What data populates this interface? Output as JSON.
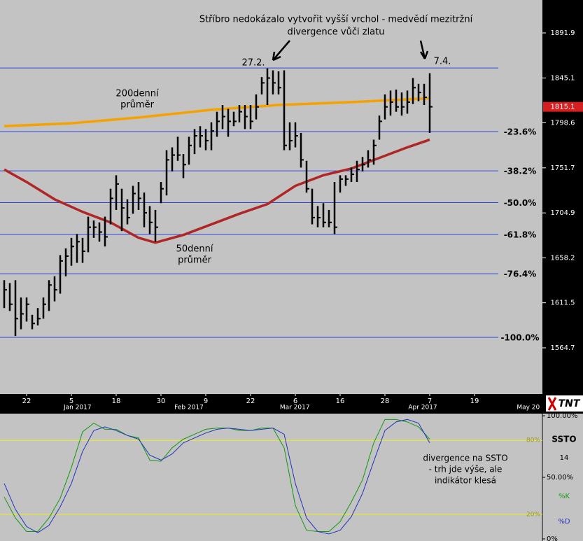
{
  "logo": "TNT",
  "chart_data": [
    {
      "type": "hlc",
      "annotation": [
        "Stříbro nedokázalo vytvořit vyšší vrchol - medvědí mezitržní",
        "divergence vůči zlatu"
      ],
      "peak_labels": [
        "27.2.",
        "7.4."
      ],
      "xlim": [
        -0.75,
        96.125
      ],
      "xticks": [
        {
          "value": 4,
          "label": "22"
        },
        {
          "value": 12,
          "label": "5"
        },
        {
          "value": 20,
          "label": "18"
        },
        {
          "value": 28,
          "label": "30"
        },
        {
          "value": 36,
          "label": "9"
        },
        {
          "value": 44,
          "label": "22"
        },
        {
          "value": 52,
          "label": "6"
        },
        {
          "value": 60,
          "label": "16"
        },
        {
          "value": 68,
          "label": "28"
        },
        {
          "value": 76,
          "label": "7"
        },
        {
          "value": 84,
          "label": "19"
        }
      ],
      "month_ticks": [
        {
          "value": 13.1,
          "label": "Jan 2017"
        },
        {
          "value": 33,
          "label": "Feb 2017"
        },
        {
          "value": 51.9,
          "label": "Mar 2017"
        },
        {
          "value": 74.75,
          "label": "Apr 2017"
        },
        {
          "value": 93.6,
          "label": "May 20"
        }
      ],
      "ylim": [
        1516.7,
        1926.1
      ],
      "yticks": [
        1891.9,
        1845.1,
        1798.6,
        1751.7,
        1704.9,
        1658.2,
        1611.5,
        1564.7
      ],
      "last_price": 1815.1,
      "bar_color": "#000000",
      "high": [
        1635,
        1632,
        1635,
        1617,
        1617,
        1599,
        1606,
        1617,
        1635,
        1639,
        1661,
        1668,
        1679,
        1683,
        1679,
        1701,
        1697,
        1695,
        1701,
        1730,
        1744,
        1730,
        1719,
        1733,
        1737,
        1726,
        1712,
        1708,
        1737,
        1770,
        1773,
        1784,
        1766,
        1784,
        1792,
        1795,
        1792,
        1799,
        1810,
        1817,
        1813,
        1810,
        1817,
        1817,
        1817,
        1828,
        1846,
        1855,
        1853,
        1852,
        1853,
        1799,
        1799,
        1788,
        1759,
        1730,
        1712,
        1715,
        1708,
        1737,
        1744,
        1744,
        1752,
        1759,
        1763,
        1770,
        1781,
        1806,
        1828,
        1832,
        1833,
        1830,
        1832,
        1845,
        1839,
        1839,
        1850
      ],
      "low": [
        1606,
        1603,
        1577,
        1584,
        1592,
        1584,
        1588,
        1595,
        1603,
        1613,
        1621,
        1639,
        1650,
        1653,
        1653,
        1664,
        1679,
        1675,
        1670,
        1693,
        1708,
        1686,
        1693,
        1704,
        1708,
        1690,
        1683,
        1675,
        1715,
        1723,
        1748,
        1759,
        1741,
        1755,
        1766,
        1773,
        1770,
        1770,
        1784,
        1792,
        1784,
        1795,
        1799,
        1792,
        1792,
        1802,
        1828,
        1817,
        1828,
        1828,
        1770,
        1770,
        1773,
        1752,
        1726,
        1693,
        1690,
        1690,
        1690,
        1683,
        1726,
        1733,
        1737,
        1737,
        1748,
        1752,
        1755,
        1781,
        1802,
        1806,
        1810,
        1806,
        1808,
        1818,
        1821,
        1817,
        1788
      ],
      "close": [
        1625,
        1610,
        1595,
        1600,
        1610,
        1590,
        1595,
        1610,
        1630,
        1625,
        1655,
        1660,
        1670,
        1675,
        1665,
        1690,
        1690,
        1685,
        1680,
        1720,
        1735,
        1710,
        1700,
        1725,
        1720,
        1705,
        1695,
        1690,
        1730,
        1760,
        1765,
        1765,
        1755,
        1775,
        1785,
        1785,
        1780,
        1790,
        1800,
        1805,
        1800,
        1800,
        1810,
        1805,
        1800,
        1815,
        1840,
        1845,
        1840,
        1835,
        1775,
        1780,
        1785,
        1760,
        1730,
        1700,
        1700,
        1695,
        1695,
        1690,
        1740,
        1740,
        1745,
        1750,
        1755,
        1760,
        1775,
        1800,
        1815,
        1820,
        1815,
        1815,
        1820,
        1835,
        1830,
        1825,
        1815.1
      ],
      "lines": [
        {
          "label": [
            "200denní",
            "průměr"
          ],
          "color": "#f5a200",
          "x": [
            0,
            12,
            24,
            37,
            49,
            62,
            76
          ],
          "values": [
            1795,
            1798,
            1804,
            1812,
            1817,
            1820,
            1824
          ]
        },
        {
          "label": [
            "50denní",
            "průměr"
          ],
          "color": "#b02525",
          "x": [
            0,
            4,
            9,
            14,
            19,
            24,
            27,
            32,
            37,
            42,
            47,
            52,
            57,
            62,
            67,
            72,
            76
          ],
          "values": [
            1750,
            1737,
            1719,
            1706,
            1695,
            1679,
            1674,
            1682,
            1693,
            1704,
            1714,
            1733,
            1744,
            1751,
            1762,
            1773,
            1781
          ]
        }
      ],
      "hlines": {
        "color": "#3344dd",
        "values": [
          1855.5,
          1789.4,
          1748.6,
          1715.6,
          1682.5,
          1641.7,
          1575.6
        ],
        "labels": [
          null,
          "-23.6%",
          "-38.2%",
          "-50.0%",
          "-61.8%",
          "-76.4%",
          "-100.0%"
        ]
      }
    },
    {
      "type": "line",
      "title": "SSTO",
      "parameter": "14",
      "annotation": [
        "divergence na SSTO",
        "- trh jde výše, ale",
        "indikátor klesá"
      ],
      "ylim": [
        -1.7,
        102.3
      ],
      "yticks": [
        {
          "value": 100,
          "label": "100.00%"
        },
        {
          "value": 50,
          "label": "50.00%"
        },
        {
          "value": 0,
          "label": "0%"
        }
      ],
      "levels": {
        "color": "#eeee22",
        "values": [
          {
            "value": 80,
            "label": "80%"
          },
          {
            "value": 20,
            "label": "20%"
          }
        ]
      },
      "x": [
        0,
        2,
        4,
        6,
        8,
        10,
        12,
        14,
        16,
        18,
        20,
        22,
        24,
        26,
        28,
        30,
        32,
        34,
        36,
        38,
        40,
        42,
        44,
        46,
        48,
        50,
        52,
        54,
        56,
        58,
        60,
        62,
        64,
        66,
        68,
        70,
        72,
        74,
        76
      ],
      "series": [
        {
          "name": "%K",
          "color": "#119911",
          "values": [
            34,
            17,
            6,
            6,
            17,
            33,
            58,
            87,
            94,
            89,
            89,
            84,
            82,
            64,
            63,
            74,
            81,
            85,
            89,
            90,
            90,
            88,
            88,
            90,
            90,
            74,
            27,
            7,
            6,
            6,
            14,
            30,
            48,
            78,
            97,
            97,
            95,
            91,
            81
          ]
        },
        {
          "name": "%D",
          "color": "#2233bb",
          "values": [
            45,
            24,
            10,
            5,
            11,
            26,
            45,
            71,
            88,
            91,
            88,
            84,
            81,
            68,
            64,
            69,
            78,
            82,
            86,
            89,
            90,
            89,
            88,
            89,
            90,
            85,
            45,
            17,
            6,
            4,
            7,
            18,
            37,
            63,
            88,
            95,
            97,
            94,
            78
          ]
        }
      ]
    }
  ]
}
